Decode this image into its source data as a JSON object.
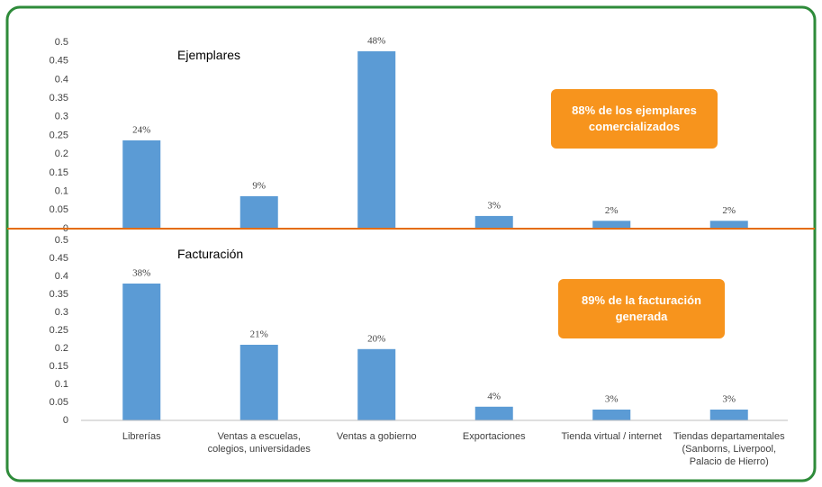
{
  "chart_data": [
    {
      "type": "bar",
      "title": "Ejemplares",
      "annotation": "88% de los ejemplares comercializados",
      "categories": [
        null,
        null,
        null,
        null,
        null,
        null
      ],
      "values": [
        0.237,
        0.087,
        0.476,
        0.034,
        0.021,
        0.021
      ],
      "value_labels": [
        "24%",
        "9%",
        "48%",
        "3%",
        "2%",
        "2%"
      ],
      "color": "#5b9bd5",
      "ylim": [
        0,
        0.5
      ],
      "yticks": [
        0,
        0.05,
        0.1,
        0.15,
        0.2,
        0.25,
        0.3,
        0.35,
        0.4,
        0.45,
        0.5
      ]
    },
    {
      "type": "bar",
      "title": "Facturación",
      "annotation": "89% de la facturación generada",
      "categories": [
        "Librerías",
        "Ventas a escuelas, colegios, universidades",
        "Ventas a gobierno",
        "Exportaciones",
        "Tienda virtual / internet",
        "Tiendas departamentales (Sanborns, Liverpool, Palacio de Hierro)"
      ],
      "values": [
        0.38,
        0.21,
        0.198,
        0.038,
        0.03,
        0.03
      ],
      "value_labels": [
        "38%",
        "21%",
        "20%",
        "4%",
        "3%",
        "3%"
      ],
      "color": "#5b9bd5",
      "ylim": [
        0,
        0.5
      ],
      "yticks": [
        0,
        0.05,
        0.1,
        0.15,
        0.2,
        0.25,
        0.3,
        0.35,
        0.4,
        0.45,
        0.5
      ]
    }
  ]
}
